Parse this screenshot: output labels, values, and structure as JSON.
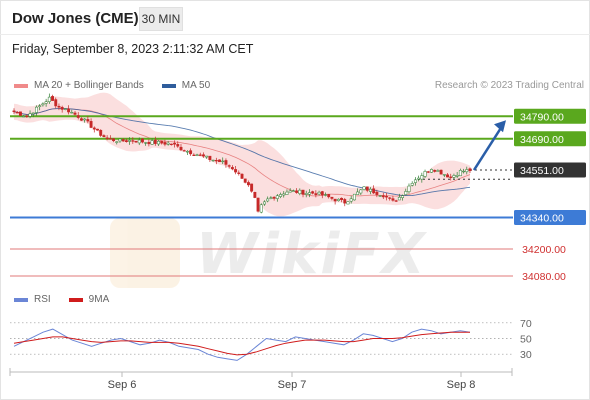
{
  "header": {
    "title": "Dow Jones (CME)",
    "timeframe": "30 MIN",
    "timestamp": "Friday, September 8, 2023 2:11:32 AM CET"
  },
  "legend": {
    "ma20": "MA 20 + Bollinger Bands",
    "ma50": "MA 50",
    "credit": "Research © 2023 Trading Central"
  },
  "rsi_legend": {
    "rsi": "RSI",
    "ma9": "9MA"
  },
  "watermark": "WikiFX",
  "colors": {
    "ma20_band": "#f7b8b8",
    "ma20_line": "#e05a5a",
    "ma50_line": "#2f5d9c",
    "green_level": "#5aa81e",
    "blue_level": "#3d7bd6",
    "red_level": "#e07a7a",
    "current": "#333333",
    "arrow": "#2a5ea8",
    "rsi_line": "#6b86d6",
    "rsi_ma": "#d01c1c"
  },
  "chart_data": {
    "type": "candlestick",
    "title": "Dow Jones (CME)",
    "timeframe": "30 MIN",
    "x_ticks": [
      "Sep 6",
      "Sep 7",
      "Sep 8"
    ],
    "ylim": [
      34040,
      34880
    ],
    "levels": [
      {
        "value": 34790,
        "label": "34790.00",
        "color": "#5aa81e",
        "style": "solid",
        "kind": "resistance"
      },
      {
        "value": 34690,
        "label": "34690.00",
        "color": "#5aa81e",
        "style": "solid",
        "kind": "resistance"
      },
      {
        "value": 34551,
        "label": "34551.00",
        "color": "#333333",
        "style": "dotted",
        "kind": "current"
      },
      {
        "value": 34340,
        "label": "34340.00",
        "color": "#3d7bd6",
        "style": "solid",
        "kind": "pivot"
      },
      {
        "value": 34200,
        "label": "34200.00",
        "color": "#e07a7a",
        "style": "thin",
        "kind": "support"
      },
      {
        "value": 34080,
        "label": "34080.00",
        "color": "#e07a7a",
        "style": "thin",
        "kind": "support"
      }
    ],
    "close_path": [
      [
        0,
        34810
      ],
      [
        4,
        34790
      ],
      [
        8,
        34835
      ],
      [
        11,
        34870
      ],
      [
        14,
        34830
      ],
      [
        17,
        34815
      ],
      [
        20,
        34790
      ],
      [
        23,
        34760
      ],
      [
        26,
        34720
      ],
      [
        29,
        34690
      ],
      [
        33,
        34680
      ],
      [
        37,
        34683
      ],
      [
        41,
        34676
      ],
      [
        45,
        34672
      ],
      [
        49,
        34668
      ],
      [
        53,
        34640
      ],
      [
        57,
        34620
      ],
      [
        61,
        34600
      ],
      [
        65,
        34585
      ],
      [
        68,
        34560
      ],
      [
        71,
        34520
      ],
      [
        73,
        34480
      ],
      [
        75,
        34420
      ],
      [
        76,
        34360
      ],
      [
        77,
        34390
      ],
      [
        79,
        34420
      ],
      [
        82,
        34440
      ],
      [
        85,
        34455
      ],
      [
        88,
        34455
      ],
      [
        91,
        34450
      ],
      [
        94,
        34448
      ],
      [
        97,
        34435
      ],
      [
        100,
        34420
      ],
      [
        103,
        34408
      ],
      [
        106,
        34440
      ],
      [
        109,
        34470
      ],
      [
        112,
        34455
      ],
      [
        115,
        34440
      ],
      [
        118,
        34410
      ],
      [
        120,
        34430
      ],
      [
        122,
        34460
      ],
      [
        124,
        34500
      ],
      [
        127,
        34530
      ],
      [
        130,
        34560
      ],
      [
        133,
        34540
      ],
      [
        136,
        34520
      ],
      [
        139,
        34545
      ],
      [
        142,
        34551
      ]
    ],
    "forecast": {
      "from": 34551,
      "to": 34790,
      "direction": "up"
    },
    "rsi": {
      "levels": [
        70,
        50,
        30
      ],
      "values": [
        40,
        46,
        52,
        58,
        62,
        55,
        48,
        44,
        40,
        44,
        48,
        50,
        46,
        42,
        44,
        48,
        45,
        40,
        38,
        36,
        30,
        26,
        24,
        22,
        30,
        40,
        50,
        48,
        46,
        52,
        50,
        48,
        46,
        44,
        42,
        48,
        56,
        54,
        50,
        46,
        50,
        58,
        62,
        60,
        56,
        58,
        60,
        58
      ],
      "ma9": [
        44,
        46,
        48,
        50,
        52,
        52,
        50,
        48,
        46,
        45,
        46,
        47,
        47,
        46,
        45,
        45,
        45,
        44,
        42,
        40,
        37,
        34,
        31,
        29,
        30,
        33,
        37,
        41,
        44,
        46,
        48,
        48,
        48,
        47,
        46,
        46,
        48,
        50,
        50,
        50,
        51,
        53,
        55,
        56,
        57,
        58,
        58,
        58
      ]
    }
  }
}
